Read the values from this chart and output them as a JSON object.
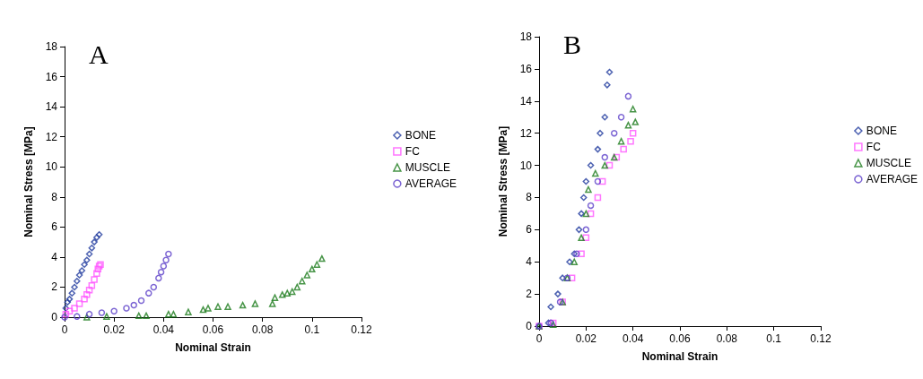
{
  "chart_data": [
    {
      "type": "scatter",
      "title": "A",
      "xlabel": "Nominal Strain",
      "ylabel": "Nominal Stress [MPa]",
      "xlim": [
        0,
        0.12
      ],
      "xticks": [
        0,
        0.02,
        0.04,
        0.06,
        0.08,
        0.1,
        0.12
      ],
      "ylim": [
        0,
        18
      ],
      "yticks": [
        0,
        2,
        4,
        6,
        8,
        10,
        12,
        14,
        16,
        18
      ],
      "grid": false,
      "legend": "right",
      "series": [
        {
          "name": "BONE",
          "color": "#1f3a9e",
          "marker": "diamond",
          "x": [
            0.0005,
            0.0012,
            0.002,
            0.003,
            0.004,
            0.005,
            0.006,
            0.007,
            0.008,
            0.009,
            0.01,
            0.011,
            0.012,
            0.013,
            0.014
          ],
          "values": [
            0.6,
            1.0,
            1.2,
            1.6,
            2.0,
            2.4,
            2.8,
            3.1,
            3.5,
            3.8,
            4.2,
            4.6,
            5.0,
            5.3,
            5.5
          ]
        },
        {
          "name": "FC",
          "color": "#ff55ff",
          "marker": "square",
          "x": [
            0.0005,
            0.002,
            0.004,
            0.006,
            0.008,
            0.009,
            0.01,
            0.011,
            0.012,
            0.013,
            0.0135,
            0.014,
            0.0145
          ],
          "values": [
            0.2,
            0.4,
            0.6,
            0.9,
            1.2,
            1.5,
            1.8,
            2.1,
            2.5,
            2.9,
            3.2,
            3.4,
            3.5
          ]
        },
        {
          "name": "MUSCLE",
          "color": "#1a7a1a",
          "marker": "triangle",
          "x": [
            0.009,
            0.017,
            0.03,
            0.033,
            0.042,
            0.044,
            0.05,
            0.056,
            0.058,
            0.062,
            0.066,
            0.072,
            0.077,
            0.084,
            0.085,
            0.088,
            0.09,
            0.092,
            0.094,
            0.096,
            0.098,
            0.1,
            0.102,
            0.104
          ],
          "values": [
            0,
            0.05,
            0.1,
            0.1,
            0.2,
            0.2,
            0.35,
            0.5,
            0.6,
            0.7,
            0.7,
            0.8,
            0.9,
            0.9,
            1.3,
            1.5,
            1.6,
            1.7,
            2.0,
            2.4,
            2.8,
            3.2,
            3.5,
            3.9
          ]
        },
        {
          "name": "AVERAGE",
          "color": "#5b3fc8",
          "marker": "circle",
          "x": [
            0,
            0.005,
            0.01,
            0.015,
            0.02,
            0.025,
            0.028,
            0.031,
            0.034,
            0.036,
            0.038,
            0.039,
            0.04,
            0.041,
            0.042
          ],
          "values": [
            0,
            0.05,
            0.2,
            0.3,
            0.4,
            0.6,
            0.8,
            1.1,
            1.6,
            2.0,
            2.6,
            3.0,
            3.4,
            3.8,
            4.2
          ]
        }
      ]
    },
    {
      "type": "scatter",
      "title": "B",
      "xlabel": "Nominal Strain",
      "ylabel": "Nominal Stress [MPa]",
      "xlim": [
        0,
        0.12
      ],
      "xticks": [
        0,
        0.02,
        0.04,
        0.06,
        0.08,
        0.1,
        0.12
      ],
      "ylim": [
        0,
        18
      ],
      "yticks": [
        0,
        2,
        4,
        6,
        8,
        10,
        12,
        14,
        16,
        18
      ],
      "grid": false,
      "legend": "right",
      "series": [
        {
          "name": "BONE",
          "color": "#1f3a9e",
          "marker": "diamond",
          "x": [
            0,
            0.004,
            0.005,
            0.008,
            0.01,
            0.013,
            0.015,
            0.017,
            0.018,
            0.019,
            0.02,
            0.022,
            0.025,
            0.026,
            0.028,
            0.029,
            0.03
          ],
          "values": [
            0,
            0.2,
            1.2,
            2.0,
            3.0,
            4.0,
            4.5,
            6.0,
            7.0,
            8.0,
            9.0,
            10.0,
            11.0,
            12.0,
            13.0,
            15.0,
            15.8
          ]
        },
        {
          "name": "FC",
          "color": "#ff55ff",
          "marker": "square",
          "x": [
            0,
            0.006,
            0.01,
            0.014,
            0.018,
            0.02,
            0.022,
            0.025,
            0.027,
            0.03,
            0.033,
            0.036,
            0.039,
            0.04
          ],
          "values": [
            0,
            0.2,
            1.5,
            3.0,
            4.5,
            5.5,
            7.0,
            8.0,
            9.0,
            10.0,
            10.5,
            11.0,
            11.5,
            12.0
          ]
        },
        {
          "name": "MUSCLE",
          "color": "#1a7a1a",
          "marker": "triangle",
          "x": [
            0,
            0.006,
            0.01,
            0.012,
            0.015,
            0.018,
            0.02,
            0.021,
            0.024,
            0.028,
            0.032,
            0.035,
            0.038,
            0.04,
            0.041
          ],
          "values": [
            0,
            0.1,
            1.5,
            3.0,
            4.0,
            5.5,
            7.0,
            8.5,
            9.5,
            10.0,
            10.5,
            11.5,
            12.5,
            13.5,
            12.7
          ]
        },
        {
          "name": "AVERAGE",
          "color": "#5b3fc8",
          "marker": "circle",
          "x": [
            0,
            0.005,
            0.009,
            0.012,
            0.016,
            0.02,
            0.022,
            0.025,
            0.028,
            0.032,
            0.035,
            0.038
          ],
          "values": [
            0,
            0.2,
            1.5,
            3.0,
            4.5,
            6.0,
            7.5,
            9.0,
            10.5,
            12.0,
            13.0,
            14.3
          ]
        }
      ]
    }
  ]
}
